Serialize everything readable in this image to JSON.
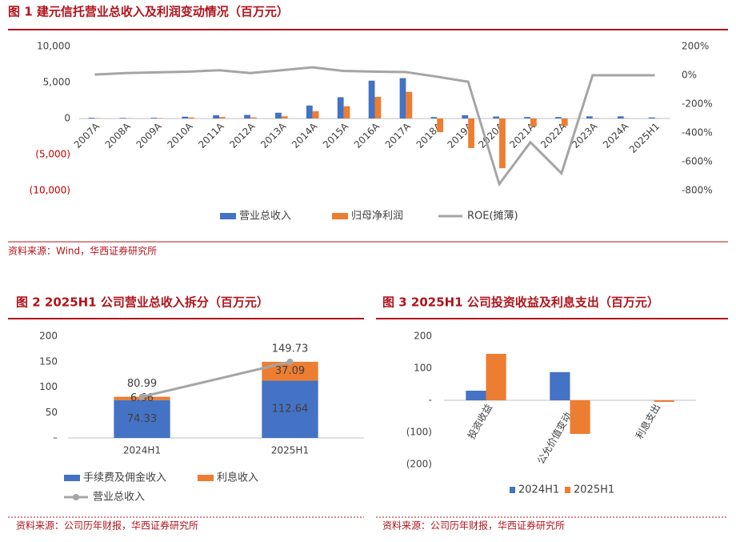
{
  "chart_data": [
    {
      "type": "bar",
      "title": "图 1  建元信托营业总收入及利润变动情况（百万元）",
      "source": "资料来源：Wind，华西证券研究所",
      "categories": [
        "2007A",
        "2008A",
        "2009A",
        "2010A",
        "2011A",
        "2012A",
        "2013A",
        "2014A",
        "2015A",
        "2016A",
        "2017A",
        "2018A",
        "2019A",
        "2020A",
        "2021A",
        "2022A",
        "2023A",
        "2024A",
        "2025H1"
      ],
      "series": [
        {
          "name": "营业总收入",
          "color": "#4472c4",
          "values": [
            100,
            80,
            100,
            250,
            450,
            500,
            800,
            1800,
            2950,
            5250,
            5600,
            200,
            450,
            280,
            200,
            200,
            300,
            300,
            150
          ]
        },
        {
          "name": "归母净利润",
          "color": "#ed7d31",
          "values": [
            50,
            40,
            60,
            150,
            200,
            150,
            300,
            1000,
            1700,
            3000,
            3700,
            -1900,
            -4100,
            -6900,
            -1100,
            -1000,
            50,
            30,
            20
          ]
        },
        {
          "name": "ROE(摊薄)",
          "color": "#a5a5a5",
          "type": "line",
          "axis": "y2",
          "values": [
            5,
            15,
            20,
            25,
            35,
            15,
            35,
            55,
            30,
            25,
            22,
            -10,
            -45,
            -755,
            -465,
            -680,
            0,
            0,
            0
          ]
        }
      ],
      "ylim": [
        -10000,
        10000
      ],
      "yticks": [
        {
          "value": 10000,
          "label": "10,000"
        },
        {
          "value": 5000,
          "label": "5,000"
        },
        0,
        {
          "value": -5000,
          "label": "(5,000)"
        },
        {
          "value": -10000,
          "label": "(10,000)"
        }
      ],
      "y2lim": [
        -800,
        200
      ],
      "y2ticks": [
        {
          "value": 200,
          "label": "200%"
        },
        {
          "value": 0,
          "label": "0%"
        },
        {
          "value": -200,
          "label": "-200%"
        },
        {
          "value": -400,
          "label": "-400%"
        },
        {
          "value": -600,
          "label": "-600%"
        },
        {
          "value": -800,
          "label": "-800%"
        }
      ],
      "negative_tick_color": "#c00000",
      "grid": false,
      "legend": "bottom"
    },
    {
      "type": "stacked_bar",
      "title": "图 2  2025H1 公司营业总收入拆分（百万元）",
      "source": "资料来源：公司历年财报，华西证券研究所",
      "categories": [
        "2024H1",
        "2025H1"
      ],
      "series": [
        {
          "name": "手续费及佣金收入",
          "color": "#4472c4",
          "values": [
            74.33,
            112.64
          ]
        },
        {
          "name": "利息收入",
          "color": "#ed7d31",
          "values": [
            6.66,
            37.09
          ]
        },
        {
          "name": "营业总收入",
          "color": "#a5a5a5",
          "type": "line",
          "markers": true,
          "values": [
            80.99,
            149.73
          ]
        }
      ],
      "ylim": [
        0,
        200
      ],
      "yticks": [
        200,
        150,
        100,
        50,
        {
          "value": 0,
          "label": "–"
        }
      ],
      "data_labels": true,
      "grid": false,
      "legend": "bottom"
    },
    {
      "type": "bar",
      "title": "图 3  2025H1 公司投资收益及利息支出（百万元）",
      "source": "资料来源：公司历年财报，华西证券研究所",
      "categories": [
        "投资收益",
        "公允价值变动…",
        "利息支出"
      ],
      "series": [
        {
          "name": "2024H1",
          "color": "#4472c4",
          "values": [
            30,
            88,
            0
          ]
        },
        {
          "name": "2025H1",
          "color": "#ed7d31",
          "values": [
            145,
            -105,
            -5
          ]
        }
      ],
      "ylim": [
        -200,
        200
      ],
      "yticks": [
        200,
        100,
        {
          "value": 0,
          "label": "-"
        },
        {
          "value": -100,
          "label": "(100)"
        },
        {
          "value": -200,
          "label": "(200)"
        }
      ],
      "grid": false,
      "legend": "bottom"
    }
  ]
}
